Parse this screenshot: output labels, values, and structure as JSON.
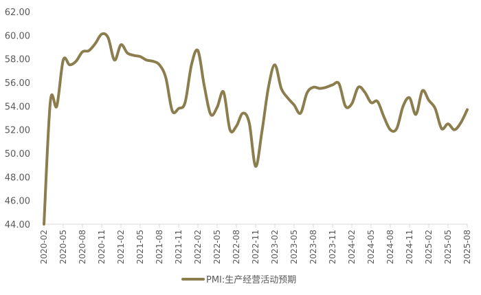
{
  "chart_data": {
    "type": "line",
    "title": "",
    "xlabel": "",
    "ylabel": "",
    "ylim": [
      44.0,
      62.0
    ],
    "yticks": [
      "44.00",
      "46.00",
      "48.00",
      "50.00",
      "52.00",
      "54.00",
      "56.00",
      "58.00",
      "60.00",
      "62.00"
    ],
    "grid": false,
    "legend_position": "bottom",
    "x_tick_labels": [
      "2020-02",
      "2020-05",
      "2020-08",
      "2020-11",
      "2021-02",
      "2021-05",
      "2021-08",
      "2021-11",
      "2022-02",
      "2022-05",
      "2022-08",
      "2022-11",
      "2023-02",
      "2023-05",
      "2023-08",
      "2023-11",
      "2024-02",
      "2024-05",
      "2024-08",
      "2024-11",
      "2025-02",
      "2025-05",
      "2025-08"
    ],
    "x": [
      "2020-02",
      "2020-03",
      "2020-04",
      "2020-05",
      "2020-06",
      "2020-07",
      "2020-08",
      "2020-09",
      "2020-10",
      "2020-11",
      "2020-12",
      "2021-01",
      "2021-02",
      "2021-03",
      "2021-04",
      "2021-05",
      "2021-06",
      "2021-07",
      "2021-08",
      "2021-09",
      "2021-10",
      "2021-11",
      "2021-12",
      "2022-01",
      "2022-02",
      "2022-03",
      "2022-04",
      "2022-05",
      "2022-06",
      "2022-07",
      "2022-08",
      "2022-09",
      "2022-10",
      "2022-11",
      "2022-12",
      "2023-01",
      "2023-02",
      "2023-03",
      "2023-04",
      "2023-05",
      "2023-06",
      "2023-07",
      "2023-08",
      "2023-09",
      "2023-10",
      "2023-11",
      "2023-12",
      "2024-01",
      "2024-02",
      "2024-03",
      "2024-04",
      "2024-05",
      "2024-06",
      "2024-07",
      "2024-08",
      "2024-09",
      "2024-10",
      "2024-11",
      "2024-12",
      "2025-01",
      "2025-02",
      "2025-03",
      "2025-04",
      "2025-05",
      "2025-06",
      "2025-07",
      "2025-08"
    ],
    "series": [
      {
        "name": "PMI:生产经营活动预期",
        "color": "#8b7d4d",
        "values": [
          44.0,
          54.4,
          54.0,
          57.9,
          57.5,
          57.8,
          58.6,
          58.7,
          59.3,
          60.1,
          59.8,
          57.9,
          59.2,
          58.5,
          58.3,
          58.2,
          57.9,
          57.8,
          57.5,
          56.4,
          53.6,
          53.8,
          54.3,
          57.5,
          58.7,
          55.7,
          53.3,
          53.9,
          55.2,
          52.0,
          52.3,
          53.4,
          52.6,
          48.9,
          51.9,
          55.6,
          57.5,
          55.5,
          54.7,
          54.1,
          53.4,
          55.1,
          55.6,
          55.5,
          55.6,
          55.8,
          55.9,
          54.0,
          54.2,
          55.6,
          55.2,
          54.3,
          54.4,
          53.1,
          52.0,
          52.1,
          54.0,
          54.7,
          53.3,
          55.3,
          54.5,
          53.8,
          52.1,
          52.5,
          52.0,
          52.6,
          53.7
        ]
      }
    ]
  }
}
